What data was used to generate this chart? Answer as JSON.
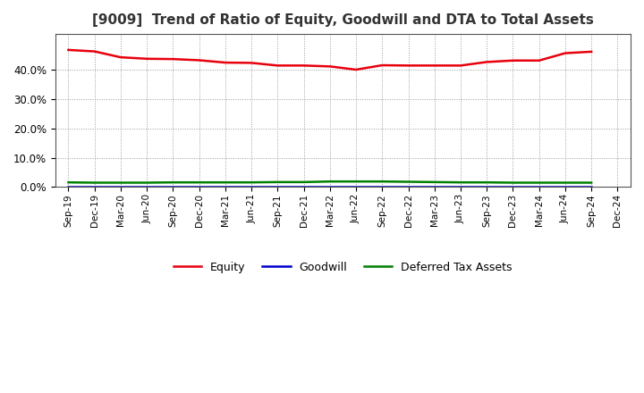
{
  "title": "[9009]  Trend of Ratio of Equity, Goodwill and DTA to Total Assets",
  "x_labels": [
    "Sep-19",
    "Dec-19",
    "Mar-20",
    "Jun-20",
    "Sep-20",
    "Dec-20",
    "Mar-21",
    "Jun-21",
    "Sep-21",
    "Dec-21",
    "Mar-22",
    "Jun-22",
    "Sep-22",
    "Dec-22",
    "Mar-23",
    "Jun-23",
    "Sep-23",
    "Dec-23",
    "Mar-24",
    "Jun-24",
    "Sep-24",
    "Dec-24"
  ],
  "equity": [
    0.466,
    0.461,
    0.441,
    0.436,
    0.435,
    0.431,
    0.423,
    0.422,
    0.413,
    0.413,
    0.41,
    0.399,
    0.414,
    0.413,
    0.413,
    0.413,
    0.425,
    0.43,
    0.43,
    0.455,
    0.46,
    null
  ],
  "goodwill": [
    0.0,
    0.0,
    0.0,
    0.0,
    0.0,
    0.0,
    0.0,
    0.0,
    0.0,
    0.0,
    0.0,
    0.0,
    0.0,
    0.0,
    0.0,
    0.0,
    0.0,
    0.0,
    0.0,
    0.0,
    0.0,
    null
  ],
  "dta": [
    0.016,
    0.015,
    0.015,
    0.015,
    0.016,
    0.016,
    0.016,
    0.016,
    0.017,
    0.017,
    0.019,
    0.019,
    0.019,
    0.018,
    0.017,
    0.016,
    0.016,
    0.015,
    0.015,
    0.015,
    0.015,
    null
  ],
  "equity_color": "#e8000d",
  "goodwill_color": "#0000cd",
  "dta_color": "#008000",
  "ylim": [
    0.0,
    0.52
  ],
  "yticks": [
    0.0,
    0.1,
    0.2,
    0.3,
    0.4
  ],
  "background_color": "#ffffff",
  "grid_color": "#999999",
  "title_fontsize": 11
}
